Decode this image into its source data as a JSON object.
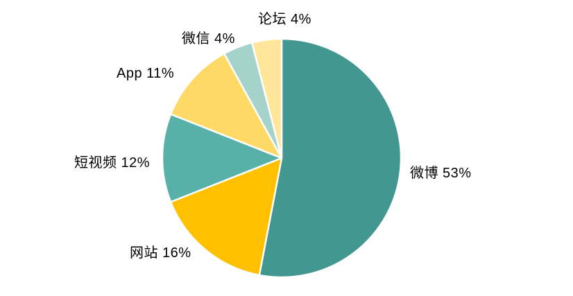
{
  "chart_data": {
    "type": "pie",
    "title": "",
    "unit": "percent",
    "start_angle": "top",
    "direction": "clockwise",
    "legend": "none",
    "label_position": "outside",
    "background": "#FFFFFF",
    "label_color": "#000000",
    "slice_border_color": "#FFFFFF",
    "categories": [
      "微博",
      "网站",
      "短视频",
      "App",
      "微信",
      "论坛"
    ],
    "values": [
      53,
      16,
      12,
      11,
      4,
      4
    ],
    "slices": [
      {
        "key": "weibo",
        "name": "微博",
        "value": 53,
        "label": "微博 53%",
        "color": "#429890"
      },
      {
        "key": "website",
        "name": "网站",
        "value": 16,
        "label": "网站 16%",
        "color": "#FFC000"
      },
      {
        "key": "short-video",
        "name": "短视频",
        "value": 12,
        "label": "短视频 12%",
        "color": "#57B1A8"
      },
      {
        "key": "app",
        "name": "App",
        "value": 11,
        "label": "App 11%",
        "color": "#FFD966"
      },
      {
        "key": "wechat",
        "name": "微信",
        "value": 4,
        "label": "微信 4%",
        "color": "#A5D3CC"
      },
      {
        "key": "forum",
        "name": "论坛",
        "value": 4,
        "label": "论坛 4%",
        "color": "#FFE699"
      }
    ]
  }
}
